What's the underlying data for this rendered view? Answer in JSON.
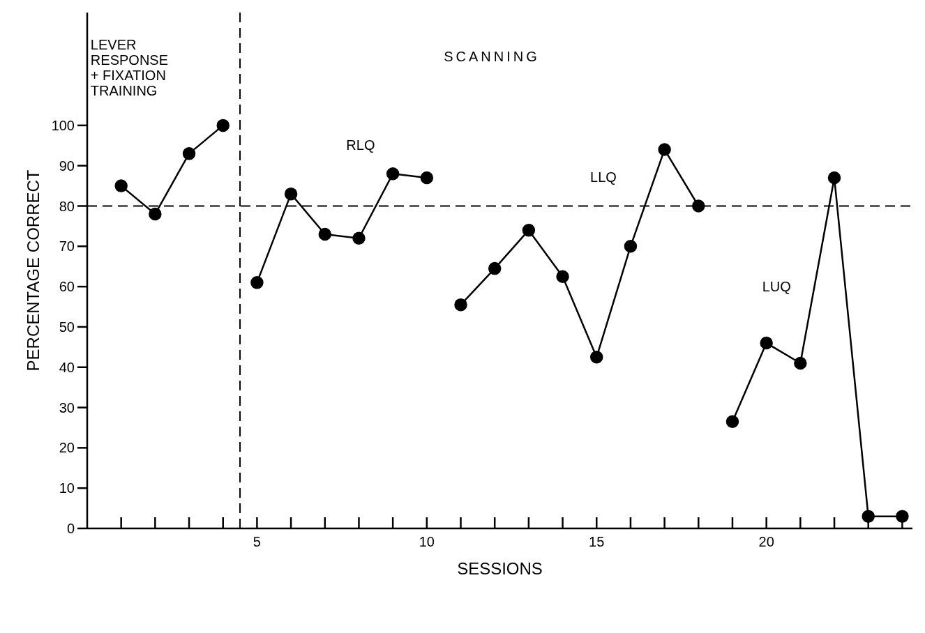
{
  "chart_data": {
    "type": "line",
    "xlabel": "SESSIONS",
    "ylabel": "PERCENTAGE CORRECT",
    "xlim": [
      0,
      24.3
    ],
    "ylim": [
      0,
      128
    ],
    "xticks": [
      {
        "value": 1,
        "label": null
      },
      {
        "value": 2,
        "label": null
      },
      {
        "value": 3,
        "label": null
      },
      {
        "value": 4,
        "label": null
      },
      5,
      {
        "value": 6,
        "label": null
      },
      {
        "value": 7,
        "label": null
      },
      {
        "value": 8,
        "label": null
      },
      {
        "value": 9,
        "label": null
      },
      10,
      {
        "value": 11,
        "label": null
      },
      {
        "value": 12,
        "label": null
      },
      {
        "value": 13,
        "label": null
      },
      {
        "value": 14,
        "label": null
      },
      15,
      {
        "value": 16,
        "label": null
      },
      {
        "value": 17,
        "label": null
      },
      {
        "value": 18,
        "label": null
      },
      {
        "value": 19,
        "label": null
      },
      20,
      {
        "value": 21,
        "label": null
      },
      {
        "value": 22,
        "label": null
      },
      {
        "value": 23,
        "label": null
      },
      {
        "value": 24,
        "label": null
      }
    ],
    "yticks": [
      0,
      10,
      20,
      30,
      40,
      50,
      60,
      70,
      80,
      90,
      100
    ],
    "series": [
      {
        "color": "#000000",
        "x": [
          1,
          2,
          3,
          4
        ],
        "values": [
          85,
          78,
          93,
          100
        ]
      },
      {
        "color": "#000000",
        "x": [
          5,
          6,
          7,
          8,
          9,
          10
        ],
        "values": [
          61,
          83,
          73,
          72,
          88,
          87
        ]
      },
      {
        "color": "#000000",
        "x": [
          11,
          12,
          13,
          14,
          15,
          16,
          17,
          18
        ],
        "values": [
          55.5,
          64.5,
          74,
          62.5,
          42.5,
          70,
          94,
          80
        ]
      },
      {
        "color": "#000000",
        "x": [
          19,
          20,
          21,
          22,
          23,
          24
        ],
        "values": [
          26.5,
          46,
          41,
          87,
          3,
          3
        ]
      }
    ],
    "marker": "circle",
    "line_style": "solid",
    "grid": false,
    "ref_lines": [
      {
        "axis": "x",
        "value": 4.5,
        "line_style": "dashed",
        "color": "#000000"
      },
      {
        "axis": "y",
        "value": 80,
        "line_style": "dashed",
        "color": "#000000"
      }
    ],
    "annotations": [
      "LEVER\nRESPONSE\n+ FIXATION\nTRAINING",
      "SCANNING",
      "RLQ",
      "LLQ",
      "LUQ"
    ]
  }
}
